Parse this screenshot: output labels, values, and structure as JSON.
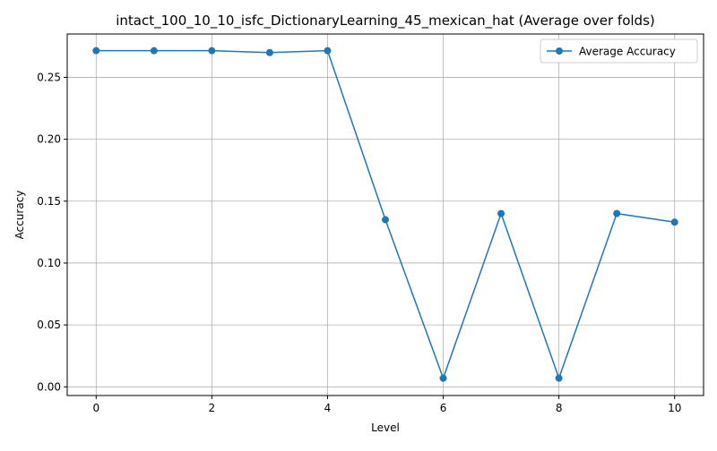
{
  "chart_data": {
    "type": "line",
    "title": "intact_100_10_10_isfc_DictionaryLearning_45_mexican_hat (Average over folds)",
    "xlabel": "Level",
    "ylabel": "Accuracy",
    "xlim": [
      -0.5,
      10.5
    ],
    "ylim": [
      -0.007,
      0.285
    ],
    "xticks": [
      0,
      2,
      4,
      6,
      8,
      10
    ],
    "xtick_labels": [
      "0",
      "2",
      "4",
      "6",
      "8",
      "10"
    ],
    "yticks": [
      0.0,
      0.05,
      0.1,
      0.15,
      0.2,
      0.25
    ],
    "ytick_labels": [
      "0.00",
      "0.05",
      "0.10",
      "0.15",
      "0.20",
      "0.25"
    ],
    "grid": true,
    "legend_position": "top-right",
    "series": [
      {
        "name": "Average Accuracy",
        "color": "#1f77b4",
        "marker": "circle",
        "x": [
          0,
          1,
          2,
          3,
          4,
          5,
          6,
          7,
          8,
          9,
          10
        ],
        "y": [
          0.2715,
          0.2715,
          0.2715,
          0.27,
          0.2715,
          0.135,
          0.007,
          0.14,
          0.007,
          0.14,
          0.133
        ]
      }
    ]
  }
}
